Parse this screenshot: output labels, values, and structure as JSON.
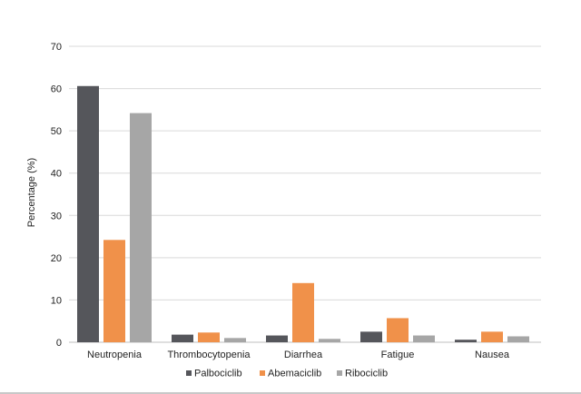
{
  "chart_data": {
    "type": "bar",
    "title": "",
    "xlabel": "",
    "ylabel": "Percentage (%)",
    "ylim": [
      0,
      70
    ],
    "yticks": [
      0,
      10,
      20,
      30,
      40,
      50,
      60,
      70
    ],
    "grid": true,
    "legend_position": "bottom",
    "categories": [
      "Neutropenia",
      "Thrombocytopenia",
      "Diarrhea",
      "Fatigue",
      "Nausea"
    ],
    "series": [
      {
        "name": "Palbociclib",
        "color": "#55565b",
        "values": [
          60.6,
          1.8,
          1.6,
          2.5,
          0.6
        ]
      },
      {
        "name": "Abemaciclib",
        "color": "#f0914a",
        "values": [
          24.2,
          2.3,
          14.0,
          5.7,
          2.5
        ]
      },
      {
        "name": "Ribociclib",
        "color": "#a6a6a6",
        "values": [
          54.2,
          1.0,
          0.8,
          1.6,
          1.4
        ]
      }
    ]
  }
}
